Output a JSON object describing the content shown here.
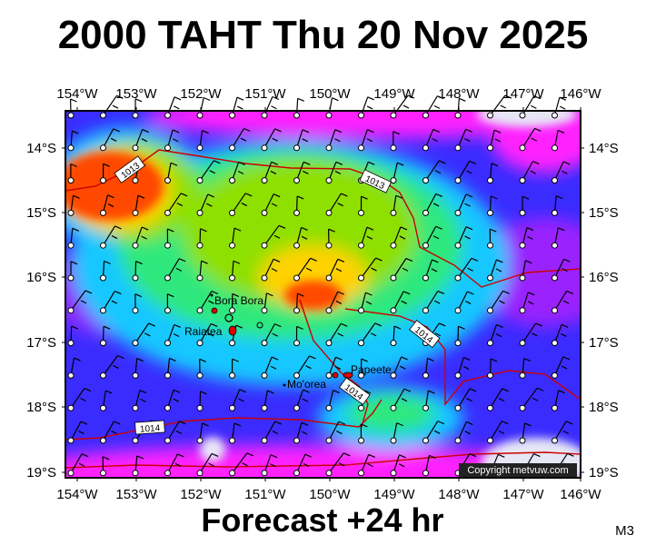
{
  "title": "2000 TAHT Thu 20 Nov 2025",
  "footer": "Forecast +24 hr",
  "map_code": "M3",
  "copyright": "Copyright metvuw.com",
  "longitude_labels": [
    "154°W",
    "153°W",
    "152°W",
    "151°W",
    "150°W",
    "149°W",
    "148°W",
    "147°W",
    "146°W"
  ],
  "latitude_labels": [
    "14°S",
    "15°S",
    "16°S",
    "17°S",
    "18°S",
    "19°S"
  ],
  "isobars": [
    {
      "label": "1013"
    },
    {
      "label": "1013"
    },
    {
      "label": "1014"
    },
    {
      "label": "1014"
    },
    {
      "label": "1014"
    }
  ],
  "places": [
    {
      "name": "Bora Bora"
    },
    {
      "name": "Raiatea"
    },
    {
      "name": "Mo'orea"
    },
    {
      "name": "Papeete"
    }
  ],
  "colors": {
    "strong_wind": "#ff4a00",
    "fresh_wind": "#ffd200",
    "moderate_wind": "#8ee000",
    "light_wind": "#2ee87e",
    "calm": "#1ea0ff",
    "low": "#7a1cff",
    "very_low": "#ff22ff",
    "isobar": "#cc0000",
    "background_field": "#3a3aff",
    "clear": "#e6e6f5"
  },
  "legend": "none",
  "grid": "on"
}
